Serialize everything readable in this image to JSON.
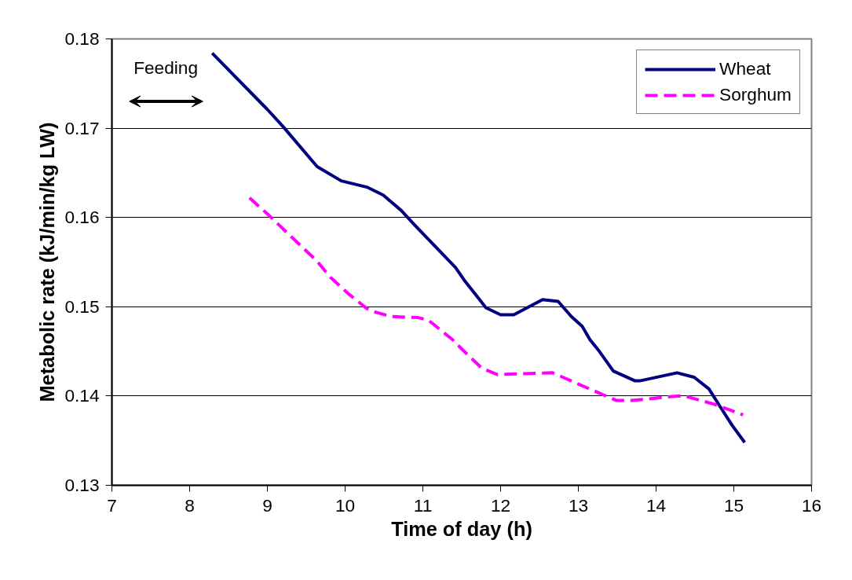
{
  "chart_data": {
    "type": "line",
    "xlabel": "Time of day (h)",
    "ylabel": "Metabolic rate (kJ/min/kg LW)",
    "xlim": [
      7,
      16
    ],
    "xticks": [
      7,
      8,
      9,
      10,
      11,
      12,
      13,
      14,
      15,
      16
    ],
    "ylim": [
      0.13,
      0.18
    ],
    "yticks": [
      0.13,
      0.14,
      0.15,
      0.16,
      0.17,
      0.18
    ],
    "grid": "y",
    "legend": "top right",
    "marker": "none",
    "annotations": [
      "Feeding"
    ],
    "series": [
      {
        "name": "Wheat",
        "color": "#000080",
        "line_style": "solid",
        "x": [
          8.29,
          9.0,
          9.2,
          9.64,
          9.95,
          10.28,
          10.49,
          10.72,
          10.89,
          11.42,
          11.53,
          11.73,
          11.81,
          12.0,
          12.17,
          12.54,
          12.74,
          12.91,
          13.05,
          13.15,
          13.27,
          13.45,
          13.73,
          13.79,
          14.27,
          14.49,
          14.68,
          14.81,
          14.98,
          15.14
        ],
        "values": [
          0.1784,
          0.1721,
          0.1702,
          0.1657,
          0.1641,
          0.1634,
          0.1625,
          0.1608,
          0.1592,
          0.1544,
          0.153,
          0.1508,
          0.1499,
          0.1491,
          0.1491,
          0.1508,
          0.1506,
          0.1489,
          0.1478,
          0.1463,
          0.145,
          0.1428,
          0.1417,
          0.1417,
          0.1426,
          0.1421,
          0.1408,
          0.139,
          0.1367,
          0.1348
        ]
      },
      {
        "name": "Sorghum",
        "color": "#ff00ff",
        "line_style": "dashed",
        "x": [
          8.77,
          9.0,
          9.47,
          9.64,
          9.81,
          10.05,
          10.28,
          10.39,
          10.59,
          10.93,
          11.07,
          11.37,
          11.52,
          11.76,
          11.96,
          12.67,
          13.01,
          13.25,
          13.49,
          13.69,
          14.27,
          14.37,
          14.74,
          15.12
        ],
        "values": [
          0.1622,
          0.1604,
          0.1565,
          0.1551,
          0.1533,
          0.1514,
          0.1498,
          0.1494,
          0.1489,
          0.1488,
          0.1485,
          0.1464,
          0.1451,
          0.1431,
          0.1424,
          0.1426,
          0.1413,
          0.1404,
          0.1395,
          0.1395,
          0.14,
          0.14,
          0.1391,
          0.1379
        ]
      }
    ]
  }
}
